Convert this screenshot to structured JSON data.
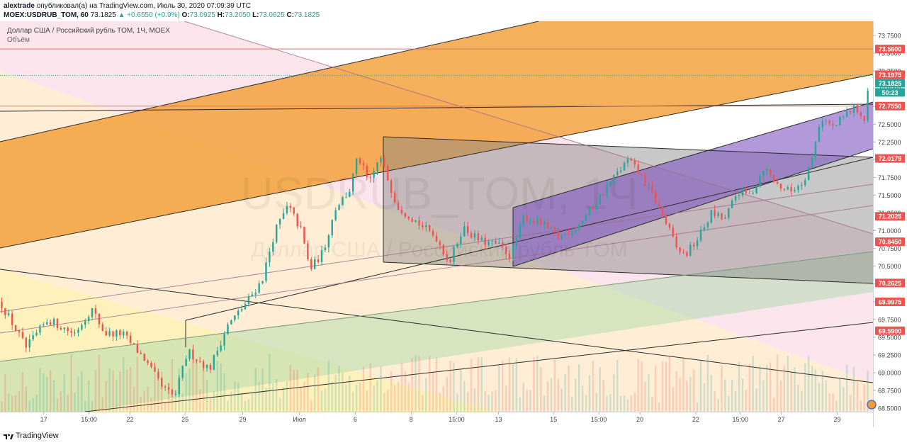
{
  "header": {
    "publisher": "alextrade",
    "published_text": "опубликовал(а) на TradingView.com, Июль 30, 2020 07:09:39 UTC",
    "symbol": "MOEX:USDRUB_TOM, 60",
    "last": "73.1825",
    "change": "+0.6550 (+0.9%)",
    "ohlc": [
      {
        "label": "O:",
        "value": "73.0925"
      },
      {
        "label": "H:",
        "value": "73.2050"
      },
      {
        "label": "L:",
        "value": "73.0625"
      },
      {
        "label": "C:",
        "value": "73.1825"
      }
    ]
  },
  "legend": {
    "instrument": "Доллар США / Российский рубль TOM, 1Ч, MOEX",
    "volume_label": "Объём"
  },
  "watermark": {
    "ticker": "USDRUB_TOM, 1Ч",
    "name": "Доллар США / Российский рубль TOM"
  },
  "footer": {
    "brand": "TradingView"
  },
  "colors": {
    "up": "#26a69a",
    "down": "#ef5350",
    "level_line": "#e57373",
    "badge_red": "#ef5350",
    "badge_teal": "#26a69a",
    "badge_dark": "#131722"
  },
  "chart_data": {
    "type": "candlestick",
    "ylim": [
      68.45,
      73.95
    ],
    "xlim": [
      0,
      100
    ],
    "y_ticks": [
      "73.7500",
      "73.5000",
      "73.2500",
      "73.0000",
      "72.7500",
      "72.5000",
      "72.2500",
      "72.0000",
      "71.7500",
      "71.5000",
      "71.2500",
      "71.0000",
      "70.7500",
      "70.5000",
      "70.2500",
      "70.0000",
      "69.7500",
      "69.5000",
      "69.2500",
      "69.0000",
      "68.7500",
      "68.5000"
    ],
    "x_ticks": [
      {
        "label": "17",
        "x": 5
      },
      {
        "label": "15:00",
        "x": 10.2
      },
      {
        "label": "22",
        "x": 14.9
      },
      {
        "label": "25",
        "x": 21.2
      },
      {
        "label": "29",
        "x": 27.8
      },
      {
        "label": "Июл",
        "x": 34.3
      },
      {
        "label": "6",
        "x": 40.7
      },
      {
        "label": "8",
        "x": 47.1
      },
      {
        "label": "15:00",
        "x": 52.3
      },
      {
        "label": "13",
        "x": 57.1
      },
      {
        "label": "15",
        "x": 63.4
      },
      {
        "label": "15:00",
        "x": 68.6
      },
      {
        "label": "20",
        "x": 73.3
      },
      {
        "label": "22",
        "x": 79.7
      },
      {
        "label": "15:00",
        "x": 84.8
      },
      {
        "label": "27",
        "x": 89.5
      },
      {
        "label": "29",
        "x": 95.9
      }
    ],
    "price_badges": [
      {
        "value": "73.5600",
        "kind": "red"
      },
      {
        "value": "73.1975",
        "kind": "red"
      },
      {
        "value": "73.1825",
        "kind": "teal"
      },
      {
        "value": "50:23",
        "kind": "teal"
      },
      {
        "value": "72.7550",
        "kind": "red"
      },
      {
        "value": "72.0175",
        "kind": "red"
      },
      {
        "value": "71.2025",
        "kind": "red"
      },
      {
        "value": "70.8450",
        "kind": "red"
      },
      {
        "value": "70.2625",
        "kind": "red"
      },
      {
        "value": "69.9975",
        "kind": "red"
      },
      {
        "value": "69.5900",
        "kind": "red"
      }
    ],
    "horizontal_levels": [
      73.56,
      72.755
    ],
    "current_price": 73.1825,
    "path": [
      [
        0,
        70.0
      ],
      [
        3,
        69.35
      ],
      [
        5.5,
        69.75
      ],
      [
        8.5,
        69.55
      ],
      [
        10.5,
        69.9
      ],
      [
        12,
        69.55
      ],
      [
        14,
        69.55
      ],
      [
        16.5,
        69.2
      ],
      [
        18.5,
        68.8
      ],
      [
        20,
        68.65
      ],
      [
        21.5,
        69.3
      ],
      [
        24,
        69.05
      ],
      [
        26,
        69.65
      ],
      [
        28,
        69.95
      ],
      [
        30,
        70.3
      ],
      [
        31.5,
        71.0
      ],
      [
        33,
        71.35
      ],
      [
        34.5,
        71.0
      ],
      [
        35.5,
        70.45
      ],
      [
        37,
        70.7
      ],
      [
        38.5,
        71.35
      ],
      [
        40,
        71.55
      ],
      [
        41,
        72.05
      ],
      [
        42.3,
        71.65
      ],
      [
        43.5,
        72.05
      ],
      [
        45.5,
        71.35
      ],
      [
        48,
        71.1
      ],
      [
        50,
        70.9
      ],
      [
        51.5,
        70.55
      ],
      [
        53,
        71.05
      ],
      [
        55,
        70.85
      ],
      [
        57,
        70.8
      ],
      [
        58.5,
        70.65
      ],
      [
        60,
        71.2
      ],
      [
        62,
        71.1
      ],
      [
        64,
        70.9
      ],
      [
        66,
        71.05
      ],
      [
        68,
        71.35
      ],
      [
        70,
        71.7
      ],
      [
        72,
        72.0
      ],
      [
        73.5,
        71.75
      ],
      [
        75,
        71.45
      ],
      [
        76.5,
        71.05
      ],
      [
        77.5,
        70.75
      ],
      [
        78.5,
        70.65
      ],
      [
        80,
        70.9
      ],
      [
        81.5,
        71.25
      ],
      [
        83,
        71.15
      ],
      [
        84.5,
        71.55
      ],
      [
        86,
        71.5
      ],
      [
        87.5,
        71.9
      ],
      [
        89,
        71.65
      ],
      [
        90.5,
        71.55
      ],
      [
        92,
        71.7
      ],
      [
        93,
        72.0
      ],
      [
        94,
        72.6
      ],
      [
        95.5,
        72.45
      ],
      [
        97,
        72.65
      ],
      [
        98,
        72.75
      ],
      [
        99,
        72.55
      ],
      [
        99.6,
        73.18
      ]
    ]
  }
}
